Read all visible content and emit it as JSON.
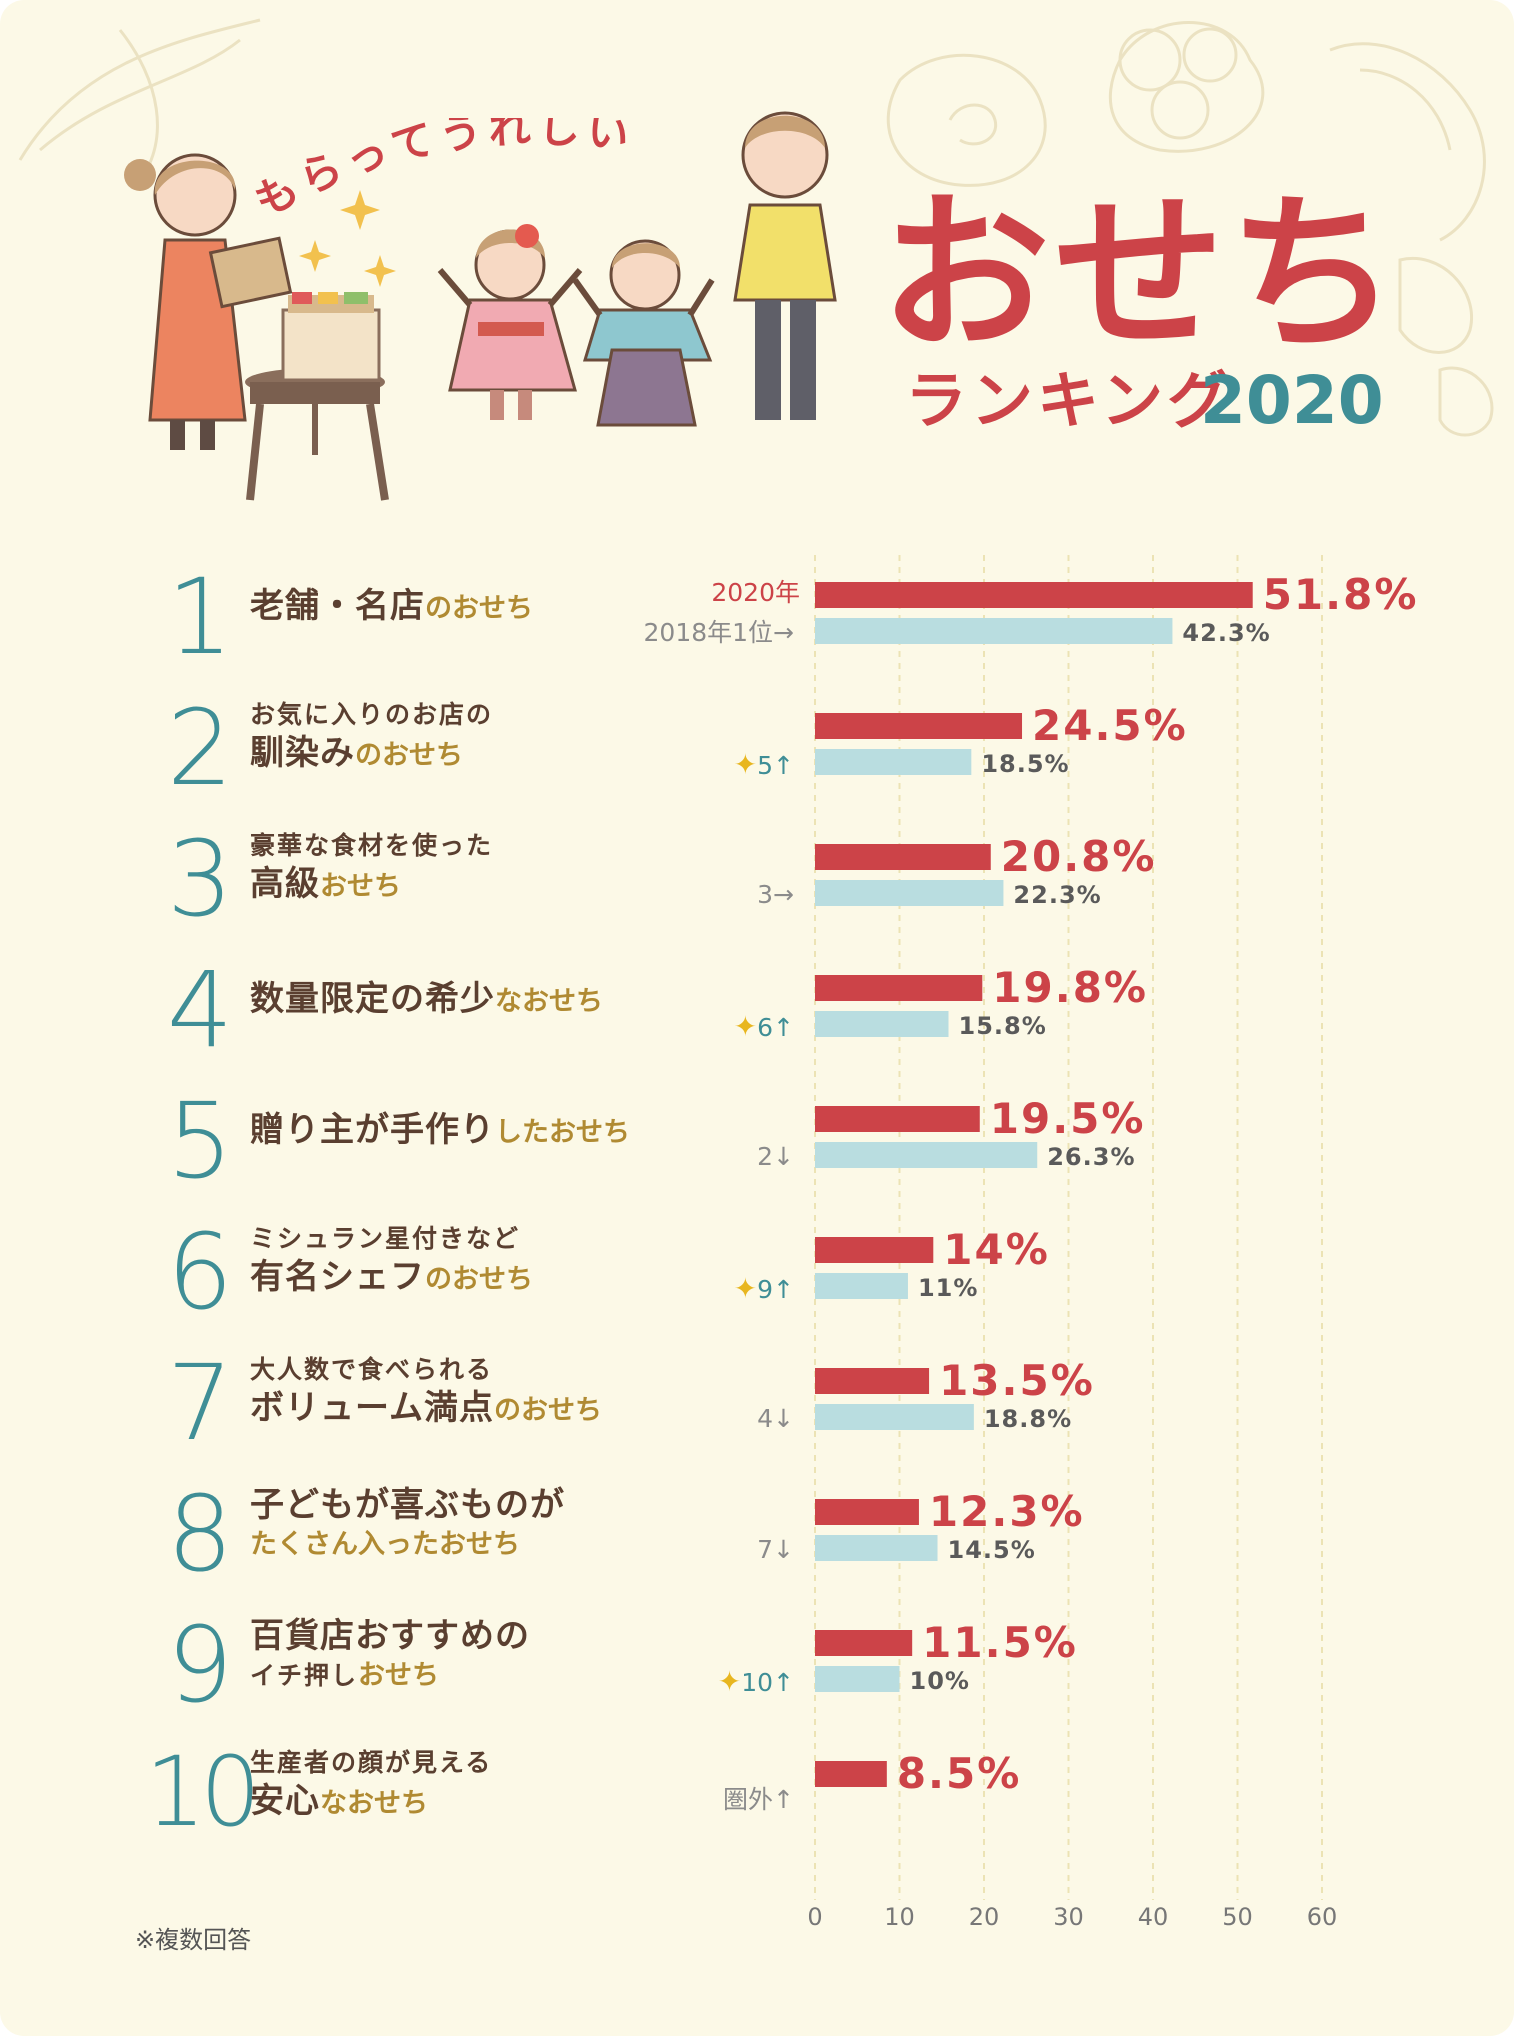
{
  "header": {
    "catchphrase": "もらってうれしい",
    "title": "おせち",
    "subtitle": "ランキング",
    "year": "2020"
  },
  "legend": {
    "current": "2020年",
    "previous": "2018年1位→"
  },
  "ranks": [
    {
      "rank": "1",
      "line1": "",
      "line2_main": "老舗・名店",
      "line2_acc": "のおせち",
      "prev": "",
      "prev_up": false
    },
    {
      "rank": "2",
      "line1": "お気に入りのお店の",
      "line2_main": "馴染み",
      "line2_acc": "のおせち",
      "prev": "5↑",
      "prev_up": true
    },
    {
      "rank": "3",
      "line1": "豪華な食材を使った",
      "line2_main": "高級",
      "line2_acc": "おせち",
      "prev": "3→",
      "prev_up": false
    },
    {
      "rank": "4",
      "line1": "",
      "line2_main": "数量限定の希少",
      "line2_acc": "なおせち",
      "prev": "6↑",
      "prev_up": true
    },
    {
      "rank": "5",
      "line1": "",
      "line2_main": "贈り主が手作り",
      "line2_acc": "したおせち",
      "prev": "2↓",
      "prev_up": false
    },
    {
      "rank": "6",
      "line1": "ミシュラン星付きなど",
      "line2_main": "有名シェフ",
      "line2_acc": "のおせち",
      "prev": "9↑",
      "prev_up": true
    },
    {
      "rank": "7",
      "line1": "大人数で食べられる",
      "line2_main": "ボリューム満点",
      "line2_acc": "のおせち",
      "prev": "4↓",
      "prev_up": false
    },
    {
      "rank": "8",
      "line1": "子どもが喜ぶものが",
      "line2_main": "",
      "line2_acc": "たくさん入ったおせち",
      "prev": "7↓",
      "prev_up": false
    },
    {
      "rank": "9",
      "line1": "百貨店おすすめの",
      "line2_main": "イチ押し",
      "line2_acc": "おせち",
      "prev": "10↑",
      "prev_up": true
    },
    {
      "rank": "10",
      "line1": "生産者の顔が見える",
      "line2_main": "安心",
      "line2_acc": "なおせち",
      "prev": "圏外↑",
      "prev_up": false
    }
  ],
  "footnote": "※複数回答",
  "colors": {
    "current_bar": "#cc4348",
    "previous_bar": "#b9dde0",
    "rank_number": "#3f8e96",
    "accent_text": "#b08a32"
  },
  "chart_data": {
    "type": "bar",
    "orientation": "horizontal",
    "categories": [
      "老舗・名店のおせち",
      "お気に入りのお店の馴染みのおせち",
      "豪華な食材を使った高級おせち",
      "数量限定の希少なおせち",
      "贈り主が手作りしたおせち",
      "ミシュラン星付きなど有名シェフのおせち",
      "大人数で食べられるボリューム満点のおせち",
      "子どもが喜ぶものがたくさん入ったおせち",
      "百貨店おすすめのイチ押しおせち",
      "生産者の顔が見える安心なおせち"
    ],
    "series": [
      {
        "name": "2020年",
        "values": [
          51.8,
          24.5,
          20.8,
          19.8,
          19.5,
          14,
          13.5,
          12.3,
          11.5,
          8.5
        ],
        "labels": [
          "51.8%",
          "24.5%",
          "20.8%",
          "19.8%",
          "19.5%",
          "14%",
          "13.5%",
          "12.3%",
          "11.5%",
          "8.5%"
        ]
      },
      {
        "name": "2018年",
        "values": [
          42.3,
          18.5,
          22.3,
          15.8,
          26.3,
          11,
          18.8,
          14.5,
          10,
          null
        ],
        "labels": [
          "42.3%",
          "18.5%",
          "22.3%",
          "15.8%",
          "26.3%",
          "11%",
          "18.8%",
          "14.5%",
          "10%",
          ""
        ]
      }
    ],
    "xlim": [
      0,
      60
    ],
    "xticks": [
      "0",
      "10",
      "20",
      "30",
      "40",
      "50",
      "60"
    ],
    "grid": true
  }
}
